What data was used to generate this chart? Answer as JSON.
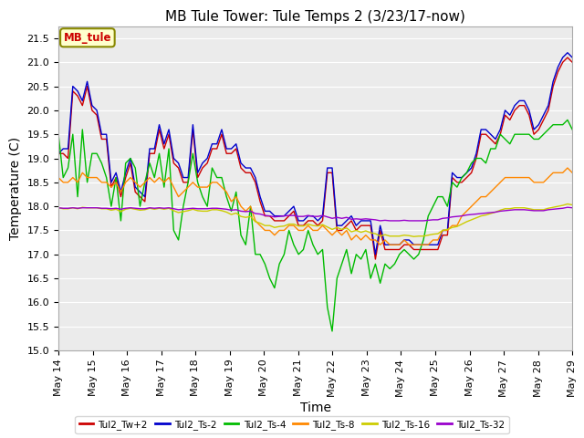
{
  "title": "MB Tule Tower: Tule Temps 2 (3/23/17-now)",
  "xlabel": "Time",
  "ylabel": "Temperature (C)",
  "ylim": [
    15.0,
    21.75
  ],
  "yticks": [
    15.0,
    15.5,
    16.0,
    16.5,
    17.0,
    17.5,
    18.0,
    18.5,
    19.0,
    19.5,
    20.0,
    20.5,
    21.0,
    21.5
  ],
  "legend_label": "MB_tule",
  "series_labels": [
    "Tul2_Tw+2",
    "Tul2_Ts-2",
    "Tul2_Ts-4",
    "Tul2_Ts-8",
    "Tul2_Ts-16",
    "Tul2_Ts-32"
  ],
  "series_colors": [
    "#cc0000",
    "#0000cc",
    "#00bb00",
    "#ff8800",
    "#cccc00",
    "#9900cc"
  ],
  "background_color": "#ffffff",
  "plot_bg_color": "#ebebeb",
  "grid_color": "#ffffff",
  "title_fontsize": 11,
  "axis_fontsize": 10,
  "tick_fontsize": 8,
  "xtick_labels": [
    "May 14",
    "May 15",
    "May 16",
    "May 17",
    "May 18",
    "May 19",
    "May 20",
    "May 21",
    "May 22",
    "May 23",
    "May 24",
    "May 25",
    "May 26",
    "May 27",
    "May 28",
    "May 29"
  ],
  "tw2": [
    19.1,
    19.1,
    19.0,
    20.4,
    20.3,
    20.1,
    20.5,
    20.0,
    19.9,
    19.4,
    19.4,
    18.4,
    18.6,
    18.2,
    18.6,
    18.9,
    18.3,
    18.2,
    18.1,
    19.1,
    19.1,
    19.6,
    19.2,
    19.5,
    18.9,
    18.8,
    18.5,
    18.5,
    19.6,
    18.6,
    18.8,
    18.9,
    19.2,
    19.2,
    19.5,
    19.1,
    19.1,
    19.2,
    18.8,
    18.7,
    18.7,
    18.5,
    18.1,
    17.8,
    17.8,
    17.7,
    17.7,
    17.7,
    17.8,
    17.9,
    17.6,
    17.6,
    17.7,
    17.7,
    17.6,
    17.7,
    18.7,
    18.7,
    17.5,
    17.5,
    17.6,
    17.7,
    17.5,
    17.6,
    17.6,
    17.6,
    16.9,
    17.5,
    17.1,
    17.1,
    17.1,
    17.1,
    17.2,
    17.2,
    17.1,
    17.1,
    17.1,
    17.1,
    17.1,
    17.1,
    17.4,
    17.4,
    18.6,
    18.5,
    18.5,
    18.6,
    18.7,
    19.0,
    19.5,
    19.5,
    19.4,
    19.3,
    19.5,
    19.9,
    19.8,
    20.0,
    20.1,
    20.1,
    19.9,
    19.5,
    19.6,
    19.8,
    20.0,
    20.5,
    20.8,
    21.0,
    21.1,
    21.0
  ],
  "ts2": [
    19.1,
    19.2,
    19.2,
    20.5,
    20.4,
    20.2,
    20.6,
    20.1,
    20.0,
    19.5,
    19.5,
    18.5,
    18.7,
    18.3,
    18.7,
    19.0,
    18.4,
    18.3,
    18.2,
    19.2,
    19.2,
    19.7,
    19.3,
    19.6,
    19.0,
    18.9,
    18.6,
    18.6,
    19.7,
    18.7,
    18.9,
    19.0,
    19.3,
    19.3,
    19.6,
    19.2,
    19.2,
    19.3,
    18.9,
    18.8,
    18.8,
    18.6,
    18.2,
    17.9,
    17.9,
    17.8,
    17.8,
    17.8,
    17.9,
    18.0,
    17.7,
    17.7,
    17.8,
    17.8,
    17.7,
    17.8,
    18.8,
    18.8,
    17.6,
    17.6,
    17.7,
    17.8,
    17.6,
    17.7,
    17.7,
    17.7,
    17.0,
    17.6,
    17.2,
    17.2,
    17.2,
    17.2,
    17.3,
    17.3,
    17.2,
    17.2,
    17.2,
    17.2,
    17.2,
    17.2,
    17.5,
    17.5,
    18.7,
    18.6,
    18.6,
    18.7,
    18.8,
    19.1,
    19.6,
    19.6,
    19.5,
    19.4,
    19.6,
    20.0,
    19.9,
    20.1,
    20.2,
    20.2,
    20.0,
    19.6,
    19.7,
    19.9,
    20.1,
    20.6,
    20.9,
    21.1,
    21.2,
    21.1
  ],
  "ts4": [
    19.5,
    18.6,
    18.8,
    19.5,
    18.2,
    19.6,
    18.5,
    19.1,
    19.1,
    18.9,
    18.6,
    18.0,
    18.6,
    17.7,
    18.9,
    19.0,
    18.8,
    18.0,
    18.5,
    18.9,
    18.6,
    19.1,
    18.4,
    19.2,
    17.5,
    17.3,
    18.0,
    18.5,
    19.1,
    18.5,
    18.2,
    18.0,
    18.8,
    18.6,
    18.6,
    18.2,
    17.9,
    18.3,
    17.4,
    17.2,
    18.0,
    17.0,
    17.0,
    16.8,
    16.5,
    16.3,
    16.8,
    17.0,
    17.5,
    17.2,
    17.0,
    17.1,
    17.5,
    17.2,
    17.0,
    17.1,
    15.9,
    15.4,
    16.5,
    16.8,
    17.1,
    16.6,
    17.0,
    16.9,
    17.1,
    16.5,
    16.8,
    16.4,
    16.8,
    16.7,
    16.8,
    17.0,
    17.1,
    17.0,
    16.9,
    17.0,
    17.3,
    17.8,
    18.0,
    18.2,
    18.2,
    18.0,
    18.5,
    18.4,
    18.6,
    18.7,
    18.9,
    19.0,
    19.0,
    18.9,
    19.2,
    19.2,
    19.5,
    19.4,
    19.3,
    19.5,
    19.5,
    19.5,
    19.5,
    19.4,
    19.4,
    19.5,
    19.6,
    19.7,
    19.7,
    19.7,
    19.8,
    19.6
  ],
  "ts8": [
    18.6,
    18.5,
    18.5,
    18.6,
    18.5,
    18.7,
    18.6,
    18.6,
    18.6,
    18.5,
    18.5,
    18.4,
    18.5,
    18.3,
    18.5,
    18.6,
    18.5,
    18.4,
    18.5,
    18.6,
    18.5,
    18.6,
    18.5,
    18.6,
    18.4,
    18.2,
    18.3,
    18.4,
    18.5,
    18.4,
    18.4,
    18.4,
    18.5,
    18.5,
    18.4,
    18.3,
    18.1,
    18.2,
    18.0,
    17.9,
    18.0,
    17.7,
    17.6,
    17.5,
    17.5,
    17.4,
    17.5,
    17.5,
    17.6,
    17.6,
    17.5,
    17.5,
    17.6,
    17.5,
    17.5,
    17.6,
    17.5,
    17.4,
    17.5,
    17.4,
    17.5,
    17.3,
    17.4,
    17.3,
    17.4,
    17.3,
    17.3,
    17.2,
    17.3,
    17.2,
    17.2,
    17.2,
    17.3,
    17.2,
    17.2,
    17.2,
    17.2,
    17.2,
    17.3,
    17.3,
    17.5,
    17.5,
    17.6,
    17.6,
    17.8,
    17.9,
    18.0,
    18.1,
    18.2,
    18.2,
    18.3,
    18.4,
    18.5,
    18.6,
    18.6,
    18.6,
    18.6,
    18.6,
    18.6,
    18.5,
    18.5,
    18.5,
    18.6,
    18.7,
    18.7,
    18.7,
    18.8,
    18.7
  ],
  "ts16": [
    17.97,
    17.95,
    17.95,
    17.97,
    17.95,
    17.98,
    17.97,
    17.97,
    17.97,
    17.95,
    17.95,
    17.92,
    17.94,
    17.89,
    17.94,
    17.96,
    17.94,
    17.92,
    17.93,
    17.96,
    17.94,
    17.96,
    17.94,
    17.96,
    17.91,
    17.87,
    17.89,
    17.91,
    17.94,
    17.91,
    17.9,
    17.9,
    17.93,
    17.93,
    17.91,
    17.88,
    17.83,
    17.86,
    17.79,
    17.77,
    17.79,
    17.68,
    17.65,
    17.6,
    17.6,
    17.56,
    17.58,
    17.59,
    17.63,
    17.63,
    17.59,
    17.59,
    17.63,
    17.6,
    17.59,
    17.62,
    17.57,
    17.52,
    17.56,
    17.52,
    17.55,
    17.47,
    17.5,
    17.46,
    17.49,
    17.45,
    17.43,
    17.38,
    17.41,
    17.38,
    17.38,
    17.38,
    17.4,
    17.39,
    17.37,
    17.38,
    17.38,
    17.4,
    17.42,
    17.43,
    17.5,
    17.52,
    17.56,
    17.58,
    17.63,
    17.68,
    17.72,
    17.76,
    17.8,
    17.82,
    17.85,
    17.88,
    17.92,
    17.95,
    17.95,
    17.97,
    17.97,
    17.97,
    17.95,
    17.93,
    17.93,
    17.93,
    17.96,
    17.98,
    18.0,
    18.02,
    18.05,
    18.03
  ],
  "ts32": [
    17.97,
    17.96,
    17.96,
    17.97,
    17.96,
    17.97,
    17.97,
    17.97,
    17.97,
    17.96,
    17.96,
    17.95,
    17.96,
    17.94,
    17.96,
    17.97,
    17.96,
    17.95,
    17.95,
    17.97,
    17.96,
    17.97,
    17.96,
    17.97,
    17.95,
    17.93,
    17.94,
    17.95,
    17.96,
    17.95,
    17.95,
    17.95,
    17.96,
    17.96,
    17.95,
    17.94,
    17.92,
    17.93,
    17.9,
    17.89,
    17.9,
    17.85,
    17.84,
    17.81,
    17.8,
    17.78,
    17.79,
    17.8,
    17.81,
    17.81,
    17.79,
    17.79,
    17.81,
    17.79,
    17.79,
    17.81,
    17.78,
    17.75,
    17.77,
    17.75,
    17.77,
    17.73,
    17.74,
    17.73,
    17.74,
    17.73,
    17.72,
    17.7,
    17.71,
    17.7,
    17.7,
    17.7,
    17.71,
    17.7,
    17.7,
    17.7,
    17.7,
    17.71,
    17.72,
    17.72,
    17.75,
    17.76,
    17.78,
    17.79,
    17.8,
    17.82,
    17.83,
    17.84,
    17.85,
    17.86,
    17.87,
    17.88,
    17.9,
    17.91,
    17.92,
    17.93,
    17.93,
    17.93,
    17.92,
    17.91,
    17.91,
    17.91,
    17.93,
    17.94,
    17.95,
    17.96,
    17.98,
    17.97
  ]
}
